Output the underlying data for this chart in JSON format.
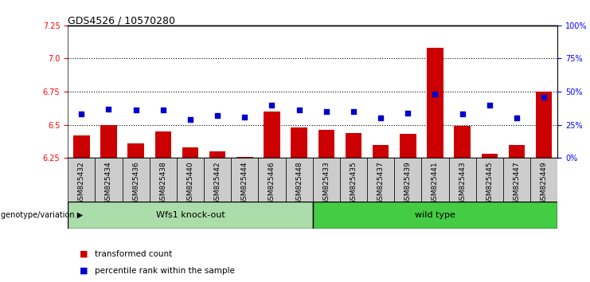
{
  "title": "GDS4526 / 10570280",
  "samples": [
    "GSM825432",
    "GSM825434",
    "GSM825436",
    "GSM825438",
    "GSM825440",
    "GSM825442",
    "GSM825444",
    "GSM825446",
    "GSM825448",
    "GSM825433",
    "GSM825435",
    "GSM825437",
    "GSM825439",
    "GSM825441",
    "GSM825443",
    "GSM825445",
    "GSM825447",
    "GSM825449"
  ],
  "red_values": [
    6.42,
    6.5,
    6.36,
    6.45,
    6.33,
    6.3,
    6.26,
    6.6,
    6.48,
    6.46,
    6.44,
    6.35,
    6.43,
    7.08,
    6.49,
    6.28,
    6.35,
    6.75
  ],
  "blue_values": [
    33,
    37,
    36,
    36,
    29,
    32,
    31,
    40,
    36,
    35,
    35,
    30,
    34,
    48,
    33,
    40,
    30,
    46
  ],
  "ylim_left": [
    6.25,
    7.25
  ],
  "ylim_right": [
    0,
    100
  ],
  "yticks_left": [
    6.25,
    6.5,
    6.75,
    7.0,
    7.25
  ],
  "yticks_right": [
    0,
    25,
    50,
    75,
    100
  ],
  "ytick_labels_right": [
    "0%",
    "25%",
    "50%",
    "75%",
    "100%"
  ],
  "hlines": [
    6.5,
    6.75,
    7.0
  ],
  "group1_label": "Wfs1 knock-out",
  "group2_label": "wild type",
  "group1_count": 9,
  "group2_count": 9,
  "genotype_label": "genotype/variation",
  "legend1": "transformed count",
  "legend2": "percentile rank within the sample",
  "red_color": "#cc0000",
  "blue_color": "#0000cc",
  "group1_bg": "#aaddaa",
  "group2_bg": "#44cc44",
  "tick_bg": "#cccccc",
  "bar_width": 0.6
}
